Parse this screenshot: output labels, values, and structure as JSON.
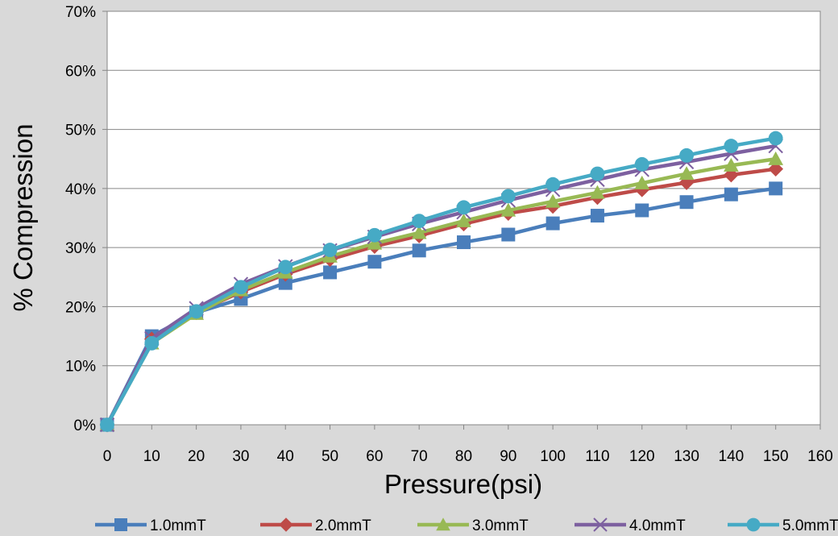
{
  "chart_data": {
    "type": "line",
    "title": "",
    "xlabel": "Pressure(psi)",
    "ylabel": "% Compression",
    "xlim": [
      0,
      160
    ],
    "ylim": [
      0,
      70
    ],
    "x_ticks": [
      "0",
      "10",
      "20",
      "30",
      "40",
      "50",
      "60",
      "70",
      "80",
      "90",
      "100",
      "110",
      "120",
      "130",
      "140",
      "150",
      "160"
    ],
    "y_ticks": [
      "0%",
      "10%",
      "20%",
      "30%",
      "40%",
      "50%",
      "60%",
      "70%"
    ],
    "grid": "horizontal",
    "legend": "bottom",
    "x": [
      0,
      10,
      20,
      30,
      40,
      50,
      60,
      70,
      80,
      90,
      100,
      110,
      120,
      130,
      140,
      150
    ],
    "series": [
      {
        "name": "1.0mmT",
        "color": "#4a7ebb",
        "marker": "square",
        "values": [
          0,
          15.0,
          19.0,
          21.3,
          24.0,
          25.8,
          27.6,
          29.5,
          30.9,
          32.2,
          34.1,
          35.4,
          36.3,
          37.7,
          39.0,
          40.0
        ]
      },
      {
        "name": "2.0mmT",
        "color": "#be4b48",
        "marker": "diamond",
        "values": [
          0,
          14.5,
          19.0,
          22.5,
          25.5,
          28.0,
          30.2,
          32.0,
          34.0,
          35.8,
          37.0,
          38.5,
          39.8,
          41.0,
          42.3,
          43.3
        ]
      },
      {
        "name": "3.0mmT",
        "color": "#98b954",
        "marker": "triangle",
        "values": [
          0,
          13.8,
          18.8,
          22.8,
          25.8,
          28.5,
          30.7,
          32.5,
          34.5,
          36.3,
          37.8,
          39.3,
          40.9,
          42.5,
          43.9,
          45.0
        ]
      },
      {
        "name": "4.0mmT",
        "color": "#7d60a0",
        "marker": "x",
        "values": [
          0,
          14.6,
          19.7,
          23.8,
          26.8,
          29.5,
          31.8,
          34.0,
          36.0,
          38.0,
          39.8,
          41.5,
          43.2,
          44.5,
          45.9,
          47.2
        ]
      },
      {
        "name": "5.0mmT",
        "color": "#46aac5",
        "marker": "circle",
        "values": [
          0,
          13.8,
          19.2,
          23.3,
          26.7,
          29.6,
          32.1,
          34.5,
          36.8,
          38.7,
          40.7,
          42.5,
          44.1,
          45.6,
          47.2,
          48.5
        ]
      }
    ]
  }
}
